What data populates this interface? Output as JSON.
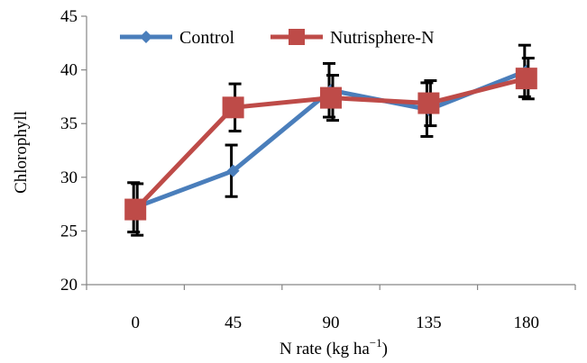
{
  "chart_data": {
    "type": "line",
    "categories": [
      "0",
      "45",
      "90",
      "135",
      "180"
    ],
    "series": [
      {
        "name": "Control",
        "values": [
          27.2,
          30.6,
          38.1,
          36.3,
          39.9
        ],
        "error": [
          2.3,
          2.4,
          2.5,
          2.5,
          2.4
        ],
        "color": "#4a7ebb",
        "marker": "diamond"
      },
      {
        "name": "Nutrisphere-N",
        "values": [
          27.0,
          36.5,
          37.4,
          36.9,
          39.2
        ],
        "error": [
          2.4,
          2.2,
          2.1,
          2.1,
          1.9
        ],
        "color": "#be4b48",
        "marker": "square"
      }
    ],
    "xlabel_main": "N rate (kg ha",
    "xlabel_sup": "−1",
    "xlabel_close": ")",
    "ylabel": "Chlorophyll",
    "ylim": [
      20,
      45
    ],
    "yticks": [
      "20",
      "25",
      "30",
      "35",
      "40",
      "45"
    ],
    "grid": false,
    "legend_position": "top"
  }
}
